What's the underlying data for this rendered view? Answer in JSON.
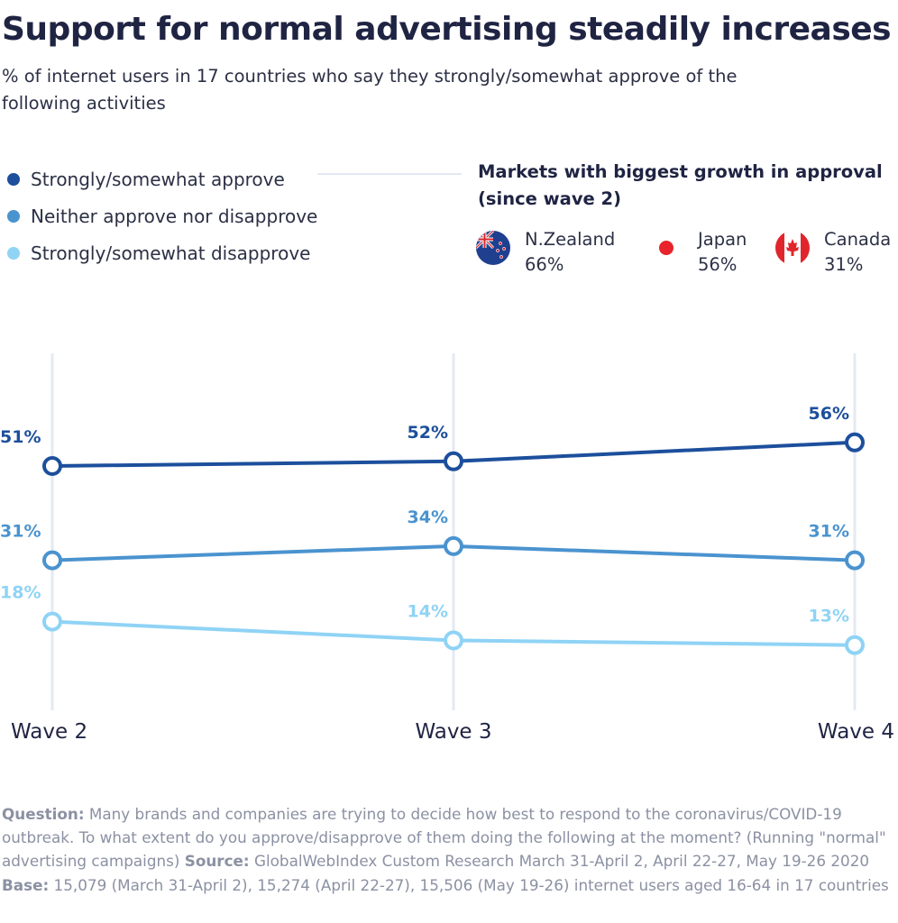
{
  "header": {
    "title": "Support for normal advertising steadily increases",
    "subtitle": "% of internet users in 17 countries who say they strongly/somewhat approve of the following activities"
  },
  "legend": [
    {
      "label": "Strongly/somewhat approve",
      "color": "#1c4f9c"
    },
    {
      "label": "Neither approve nor disapprove",
      "color": "#4a93cf"
    },
    {
      "label": "Strongly/somewhat disapprove",
      "color": "#8fd3f5"
    }
  ],
  "markets": {
    "title": "Markets with biggest growth in approval (since wave 2)",
    "items": [
      {
        "name": "N.Zealand",
        "value": "66%",
        "icon": "new-zealand-flag-icon"
      },
      {
        "name": "Japan",
        "value": "56%",
        "icon": "japan-flag-icon"
      },
      {
        "name": "Canada",
        "value": "31%",
        "icon": "canada-flag-icon"
      }
    ]
  },
  "chart_data": {
    "type": "line",
    "categories": [
      "Wave 2",
      "Wave 3",
      "Wave 4"
    ],
    "series": [
      {
        "name": "Strongly/somewhat approve",
        "values": [
          51,
          52,
          56
        ],
        "labels": [
          "51%",
          "52%",
          "56%"
        ],
        "color": "#1c4f9c"
      },
      {
        "name": "Neither approve nor disapprove",
        "values": [
          31,
          34,
          31
        ],
        "labels": [
          "31%",
          "34%",
          "31%"
        ],
        "color": "#4a93cf"
      },
      {
        "name": "Strongly/somewhat disapprove",
        "values": [
          18,
          14,
          13
        ],
        "labels": [
          "18%",
          "14%",
          "13%"
        ],
        "color": "#8fd3f5"
      }
    ],
    "grid": "vertical"
  },
  "footnote": {
    "question_label": "Question:",
    "question_text": "Many brands and companies are trying to decide how best to respond to the coronavirus/COVID-19 outbreak. To what extent do you approve/disapprove of them doing the following at the moment? (Running \"normal\" advertising campaigns)",
    "source_label": "Source:",
    "source_text": "GlobalWebIndex Custom Research March 31-April 2, April 22-27, May 19-26 2020",
    "base_label": "Base:",
    "base_text": "15,079 (March 31-April 2), 15,274 (April 22-27), 15,506 (May 19-26) internet users aged 16-64 in 17 countries"
  }
}
